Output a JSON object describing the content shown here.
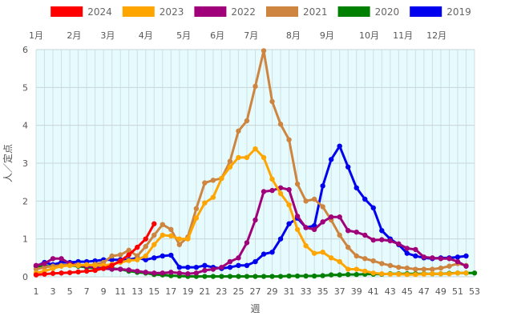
{
  "chart_data": {
    "type": "line",
    "title": "",
    "xlabel": "週",
    "ylabel": "人／定点",
    "xlim": [
      1,
      53
    ],
    "ylim": [
      0,
      6
    ],
    "x_ticks": [
      1,
      3,
      5,
      7,
      9,
      11,
      13,
      15,
      17,
      19,
      21,
      23,
      25,
      27,
      29,
      31,
      33,
      35,
      37,
      39,
      41,
      43,
      45,
      47,
      49,
      51,
      53
    ],
    "y_ticks": [
      0,
      1,
      2,
      3,
      4,
      5,
      6
    ],
    "grid": true,
    "legend_position": "top",
    "plot_background": "#e6fbfd",
    "month_labels": [
      {
        "label": "1月",
        "week": 1
      },
      {
        "label": "2月",
        "week": 5.5
      },
      {
        "label": "3月",
        "week": 9.5
      },
      {
        "label": "4月",
        "week": 14
      },
      {
        "label": "5月",
        "week": 18.5
      },
      {
        "label": "6月",
        "week": 22.5
      },
      {
        "label": "7月",
        "week": 26.5
      },
      {
        "label": "8月",
        "week": 31.5
      },
      {
        "label": "9月",
        "week": 35.5
      },
      {
        "label": "10月",
        "week": 40.5
      },
      {
        "label": "11月",
        "week": 44.5
      },
      {
        "label": "12月",
        "week": 48.5
      }
    ],
    "series": [
      {
        "name": "2024",
        "color": "#ff0000",
        "values": [
          0.05,
          0.07,
          0.09,
          0.1,
          0.11,
          0.13,
          0.15,
          0.17,
          0.22,
          0.3,
          0.42,
          0.58,
          0.78,
          1.0,
          1.4
        ]
      },
      {
        "name": "2023",
        "color": "#ffa500",
        "values": [
          0.1,
          0.15,
          0.22,
          0.28,
          0.3,
          0.3,
          0.32,
          0.3,
          0.3,
          0.33,
          0.38,
          0.43,
          0.45,
          0.55,
          0.85,
          1.1,
          1.08,
          1.0,
          1.0,
          1.55,
          1.95,
          2.1,
          2.6,
          2.9,
          3.15,
          3.15,
          3.38,
          3.15,
          2.58,
          2.2,
          1.9,
          1.25,
          0.82,
          0.62,
          0.65,
          0.5,
          0.4,
          0.2,
          0.2,
          0.15,
          0.1,
          0.08,
          0.07,
          0.07,
          0.06,
          0.06,
          0.07,
          0.08,
          0.08,
          0.08,
          0.1,
          0.1
        ]
      },
      {
        "name": "2022",
        "color": "#a0007a",
        "values": [
          0.3,
          0.35,
          0.48,
          0.48,
          0.35,
          0.3,
          0.28,
          0.25,
          0.22,
          0.2,
          0.2,
          0.18,
          0.15,
          0.12,
          0.1,
          0.1,
          0.12,
          0.1,
          0.08,
          0.1,
          0.17,
          0.2,
          0.25,
          0.4,
          0.5,
          0.9,
          1.5,
          2.25,
          2.28,
          2.35,
          2.3,
          1.6,
          1.3,
          1.25,
          1.45,
          1.58,
          1.58,
          1.22,
          1.18,
          1.1,
          0.97,
          0.98,
          0.95,
          0.87,
          0.75,
          0.72,
          0.52,
          0.5,
          0.48,
          0.48,
          0.4,
          0.28
        ]
      },
      {
        "name": "2021",
        "color": "#cd853f",
        "values": [
          0.2,
          0.25,
          0.28,
          0.3,
          0.32,
          0.32,
          0.3,
          0.33,
          0.38,
          0.55,
          0.58,
          0.7,
          0.55,
          0.8,
          1.1,
          1.38,
          1.25,
          0.85,
          1.05,
          1.8,
          2.48,
          2.55,
          2.6,
          3.05,
          3.85,
          4.12,
          5.03,
          5.97,
          4.63,
          4.03,
          3.62,
          2.45,
          2.0,
          2.05,
          1.85,
          1.5,
          1.1,
          0.78,
          0.55,
          0.48,
          0.42,
          0.35,
          0.3,
          0.25,
          0.23,
          0.2,
          0.2,
          0.2,
          0.23,
          0.28,
          0.35,
          0.3
        ]
      },
      {
        "name": "2020",
        "color": "#008000",
        "values": [
          0.28,
          0.28,
          0.28,
          0.3,
          0.3,
          0.28,
          0.25,
          0.23,
          0.23,
          0.22,
          0.2,
          0.15,
          0.12,
          0.1,
          0.06,
          0.05,
          0.03,
          0.02,
          0.01,
          0.01,
          0.01,
          0.01,
          0.01,
          0.01,
          0.01,
          0.01,
          0.01,
          0.01,
          0.01,
          0.01,
          0.02,
          0.02,
          0.02,
          0.02,
          0.03,
          0.05,
          0.05,
          0.06,
          0.06,
          0.07,
          0.07,
          0.07,
          0.08,
          0.08,
          0.08,
          0.08,
          0.08,
          0.08,
          0.08,
          0.09,
          0.1,
          0.1,
          0.1
        ]
      },
      {
        "name": "2019",
        "color": "#0000ee",
        "values": [
          0.28,
          0.38,
          0.32,
          0.38,
          0.38,
          0.4,
          0.4,
          0.42,
          0.45,
          0.45,
          0.45,
          0.45,
          0.5,
          0.45,
          0.5,
          0.55,
          0.57,
          0.25,
          0.25,
          0.25,
          0.3,
          0.25,
          0.22,
          0.25,
          0.3,
          0.3,
          0.4,
          0.6,
          0.65,
          1.0,
          1.4,
          1.55,
          1.3,
          1.35,
          2.4,
          3.1,
          3.45,
          2.9,
          2.35,
          2.05,
          1.82,
          1.22,
          1.0,
          0.85,
          0.62,
          0.55,
          0.5,
          0.48,
          0.5,
          0.5,
          0.52,
          0.55
        ]
      }
    ]
  }
}
